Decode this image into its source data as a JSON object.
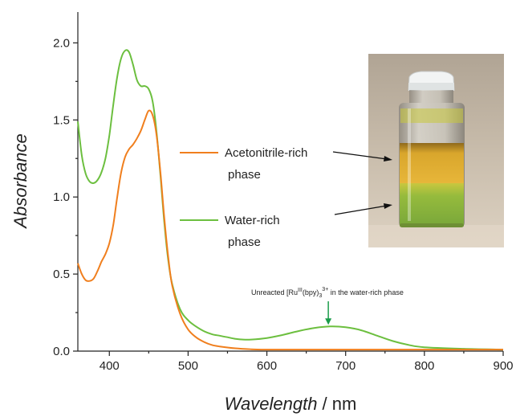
{
  "chart_data": {
    "type": "line",
    "title": "",
    "xlabel_italic": "Wavelength",
    "xlabel_unit": " / nm",
    "ylabel": "Absorbance",
    "xlim": [
      360,
      900
    ],
    "ylim": [
      0.0,
      2.2
    ],
    "x_ticks": [
      400,
      500,
      600,
      700,
      800,
      900
    ],
    "y_ticks": [
      0.0,
      0.5,
      1.0,
      1.5,
      2.0
    ],
    "y_tick_labels": [
      "0.0",
      "0.5",
      "1.0",
      "1.5",
      "2.0"
    ],
    "grid": false,
    "legend_position": "center-left",
    "series": [
      {
        "name": "Acetonitrile-rich phase",
        "legend_lines": [
          "Acetonitrile-rich",
          "phase"
        ],
        "color": "#f07f1e",
        "x": [
          360,
          365,
          370,
          375,
          380,
          385,
          390,
          395,
          400,
          405,
          410,
          415,
          420,
          425,
          430,
          435,
          440,
          445,
          450,
          455,
          460,
          465,
          470,
          475,
          480,
          490,
          500,
          510,
          520,
          530,
          540,
          560,
          580,
          600,
          650,
          700,
          750,
          800,
          850,
          900
        ],
        "y": [
          0.57,
          0.5,
          0.46,
          0.455,
          0.47,
          0.52,
          0.58,
          0.63,
          0.7,
          0.82,
          1.0,
          1.16,
          1.26,
          1.31,
          1.34,
          1.38,
          1.43,
          1.5,
          1.56,
          1.53,
          1.4,
          1.15,
          0.85,
          0.6,
          0.42,
          0.24,
          0.14,
          0.09,
          0.06,
          0.04,
          0.03,
          0.018,
          0.012,
          0.01,
          0.01,
          0.01,
          0.01,
          0.01,
          0.01,
          0.01
        ]
      },
      {
        "name": "Water-rich phase",
        "legend_lines": [
          "Water-rich",
          "phase"
        ],
        "color": "#6cbf3f",
        "x": [
          360,
          365,
          370,
          375,
          380,
          385,
          390,
          395,
          400,
          405,
          410,
          415,
          420,
          425,
          430,
          435,
          440,
          445,
          450,
          455,
          460,
          465,
          470,
          475,
          480,
          490,
          500,
          510,
          520,
          530,
          540,
          550,
          560,
          570,
          580,
          600,
          620,
          640,
          660,
          680,
          700,
          720,
          740,
          760,
          780,
          800,
          850,
          900
        ],
        "y": [
          1.49,
          1.27,
          1.15,
          1.1,
          1.09,
          1.11,
          1.16,
          1.25,
          1.4,
          1.6,
          1.78,
          1.9,
          1.95,
          1.94,
          1.86,
          1.76,
          1.72,
          1.72,
          1.7,
          1.62,
          1.42,
          1.13,
          0.82,
          0.58,
          0.43,
          0.27,
          0.2,
          0.16,
          0.13,
          0.11,
          0.1,
          0.09,
          0.08,
          0.075,
          0.075,
          0.085,
          0.105,
          0.13,
          0.15,
          0.16,
          0.155,
          0.135,
          0.1,
          0.065,
          0.04,
          0.025,
          0.015,
          0.01
        ]
      }
    ],
    "annotation": {
      "text_before": "Unreacted [Ru",
      "sup1": "III",
      "text_middle": "(bpy)",
      "sub": "3",
      "sup2": "3+",
      "text_after": " in the water-rich phase",
      "arrow_x": 678,
      "arrow_y": 0.16,
      "arrow_color": "#1a9c4a"
    }
  },
  "photo": {
    "image_kind": "photograph of vial with two liquid phases",
    "upper_phase_color": "#d6a52a",
    "lower_phase_color": "#8cbb3e",
    "cap_color": "#eef1f1"
  }
}
